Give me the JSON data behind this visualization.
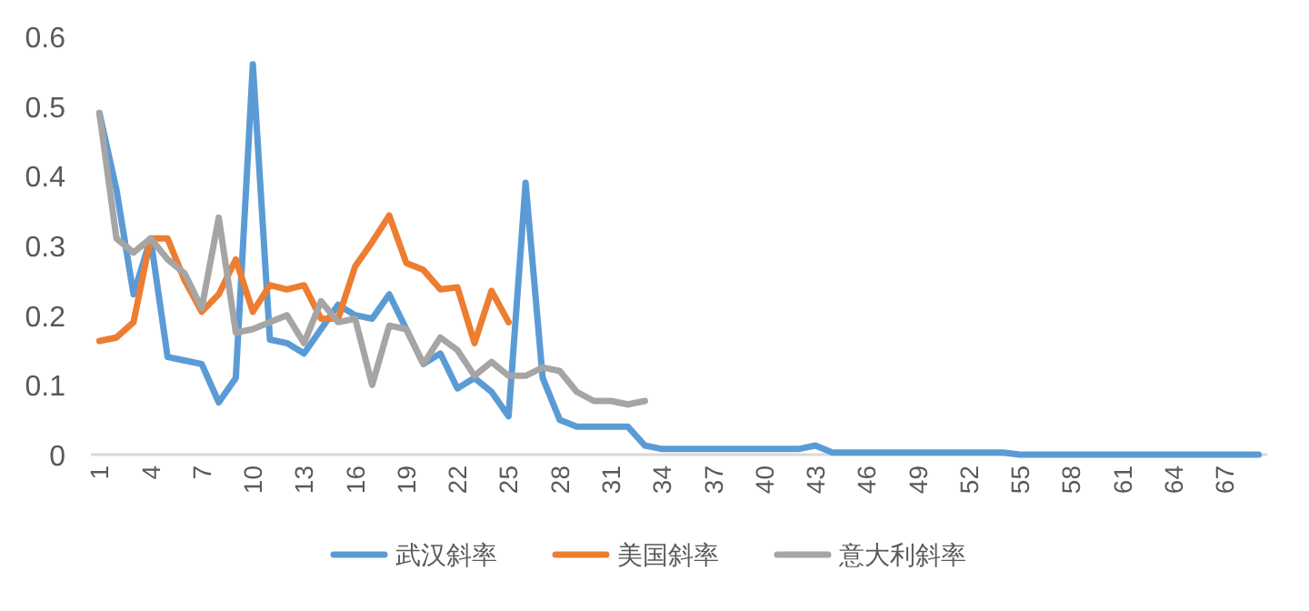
{
  "chart_data": {
    "type": "line",
    "categories": [
      "1",
      null,
      null,
      "4",
      null,
      null,
      "7",
      null,
      null,
      "10",
      null,
      null,
      "13",
      null,
      null,
      "16",
      null,
      null,
      "19",
      null,
      null,
      "22",
      null,
      null,
      "25",
      null,
      null,
      "28",
      null,
      null,
      "31",
      null,
      null,
      "34",
      null,
      null,
      "37",
      null,
      null,
      "40",
      null,
      null,
      "43",
      null,
      null,
      "46",
      null,
      null,
      "49",
      null,
      null,
      "52",
      null,
      null,
      "55",
      null,
      null,
      "58",
      null,
      null,
      "61",
      null,
      null,
      "64",
      null,
      null,
      "67",
      null,
      null
    ],
    "series": [
      {
        "name": "武汉斜率",
        "color": "#5b9bd5",
        "values": [
          0.49,
          0.38,
          0.23,
          0.31,
          0.14,
          0.135,
          0.13,
          0.075,
          0.11,
          0.56,
          0.165,
          0.16,
          0.145,
          0.18,
          0.215,
          0.2,
          0.195,
          0.23,
          0.18,
          0.13,
          0.145,
          0.095,
          0.11,
          0.09,
          0.055,
          0.39,
          0.11,
          0.05,
          0.04,
          0.04,
          0.04,
          0.04,
          0.013,
          0.008,
          0.008,
          0.008,
          0.008,
          0.008,
          0.008,
          0.008,
          0.008,
          0.008,
          0.013,
          0.003,
          0.003,
          0.003,
          0.003,
          0.003,
          0.003,
          0.003,
          0.003,
          0.003,
          0.003,
          0.003,
          0,
          0,
          0,
          0,
          0,
          0,
          0,
          0,
          0,
          0,
          0,
          0,
          0,
          0,
          0
        ]
      },
      {
        "name": "美国斜率",
        "color": "#ed7d31",
        "values": [
          0.163,
          0.168,
          0.19,
          0.31,
          0.31,
          0.25,
          0.205,
          0.23,
          0.28,
          0.205,
          0.243,
          0.237,
          0.243,
          0.195,
          0.195,
          0.27,
          0.305,
          0.343,
          0.275,
          0.265,
          0.237,
          0.24,
          0.16,
          0.235,
          0.19,
          null,
          null,
          null,
          null,
          null,
          null,
          null,
          null,
          null,
          null,
          null,
          null,
          null,
          null,
          null,
          null,
          null,
          null,
          null,
          null,
          null,
          null,
          null,
          null,
          null,
          null,
          null,
          null,
          null,
          null,
          null,
          null,
          null,
          null,
          null,
          null,
          null,
          null,
          null,
          null,
          null,
          null,
          null,
          null
        ]
      },
      {
        "name": "意大利斜率",
        "color": "#a5a5a5",
        "values": [
          0.49,
          0.31,
          0.29,
          0.31,
          0.28,
          0.26,
          0.21,
          0.34,
          0.175,
          0.18,
          0.19,
          0.2,
          0.16,
          0.22,
          0.19,
          0.195,
          0.1,
          0.185,
          0.18,
          0.13,
          0.168,
          0.15,
          0.113,
          0.133,
          0.113,
          0.113,
          0.125,
          0.12,
          0.09,
          0.077,
          0.077,
          0.072,
          0.077,
          null,
          null,
          null,
          null,
          null,
          null,
          null,
          null,
          null,
          null,
          null,
          null,
          null,
          null,
          null,
          null,
          null,
          null,
          null,
          null,
          null,
          null,
          null,
          null,
          null,
          null,
          null,
          null,
          null,
          null,
          null,
          null,
          null,
          null,
          null,
          null
        ]
      }
    ],
    "ylim": [
      0,
      0.6
    ],
    "yticks": [
      0,
      0.1,
      0.2,
      0.3,
      0.4,
      0.5,
      0.6
    ],
    "legend": "bottom"
  }
}
